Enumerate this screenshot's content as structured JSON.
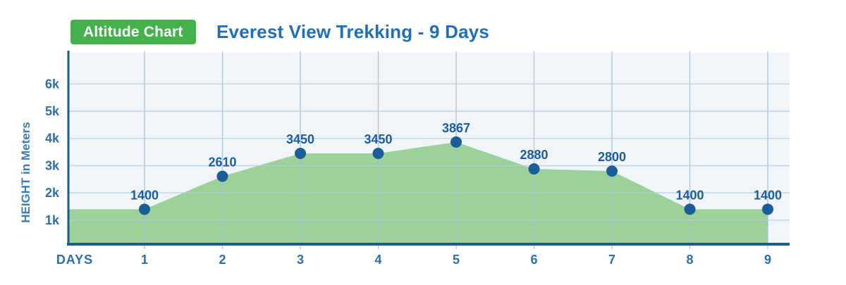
{
  "header": {
    "badge_label": "Altitude Chart",
    "title": "Everest View Trekking - 9 Days",
    "badge_color": "#45b14c",
    "title_color": "#1d70b7"
  },
  "chart_data": {
    "type": "area",
    "title": "Everest View Trekking - 9 Days",
    "x": [
      1,
      2,
      3,
      4,
      5,
      6,
      7,
      8,
      9
    ],
    "values": [
      1400,
      2610,
      3450,
      3450,
      3867,
      2880,
      2800,
      1400,
      1400
    ],
    "point_labels": [
      "1400",
      "2610",
      "3450",
      "3450",
      "3867",
      "2880",
      "2800",
      "1400",
      "1400"
    ],
    "xlabel": "DAYS",
    "ylabel": "HEIGHT in Meters",
    "ytick_values": [
      1000,
      2000,
      3000,
      4000,
      5000,
      6000
    ],
    "ytick_labels": [
      "1k",
      "2k",
      "3k",
      "4k",
      "5k",
      "6k"
    ],
    "ylim": [
      0,
      7000
    ],
    "grid": true,
    "legend": "none",
    "colors": {
      "area": "#9cd199",
      "plot_bg": "#f1f5f9",
      "axis": "#1a5f82",
      "point": "#1b5d98",
      "value_label": "#1b5e9b",
      "tick_label": "#2e6ea9",
      "axis_title": "#3d7cb5",
      "grid_h": "#b7cddf",
      "grid_v": "#9fbdd6"
    }
  }
}
